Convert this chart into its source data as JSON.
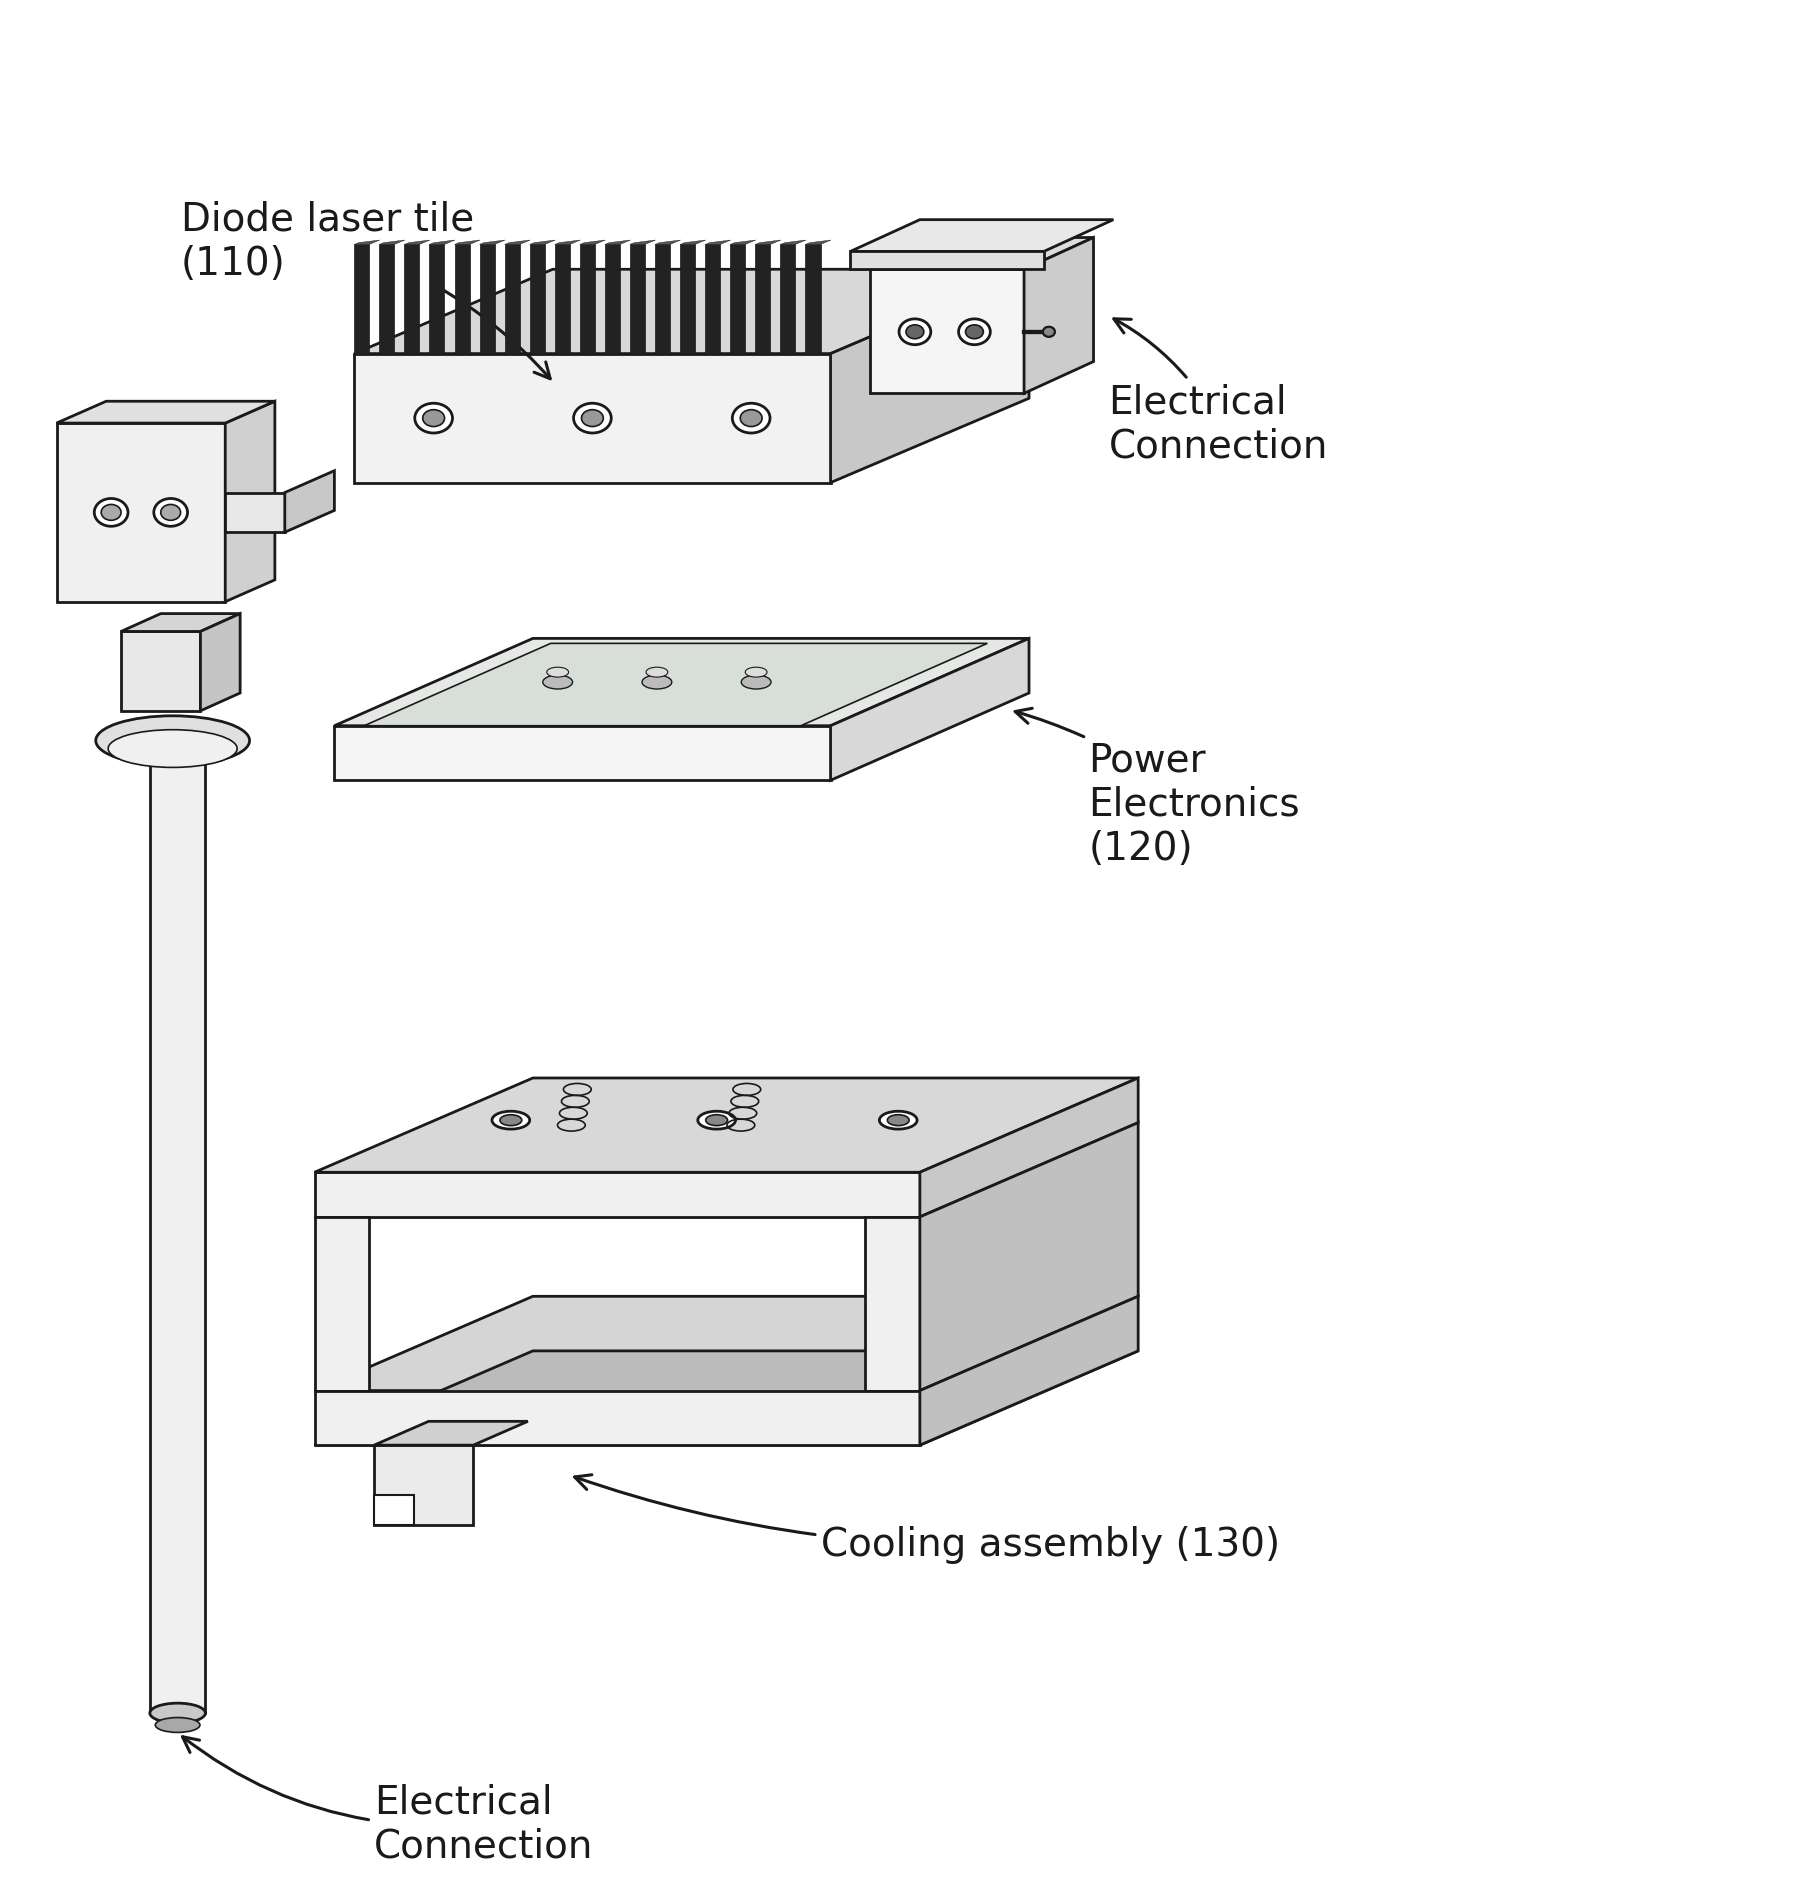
{
  "background_color": "#ffffff",
  "line_color": "#1a1a1a",
  "labels": {
    "diode_laser_tile": "Diode laser tile\n(110)",
    "electrical_connection_top": "Electrical\nConnection",
    "power_electronics": "Power\nElectronics\n(120)",
    "cooling_assembly": "Cooling assembly (130)",
    "electrical_connection_bottom": "Electrical\nConnection"
  },
  "figsize": [
    18.05,
    18.99
  ],
  "dpi": 100
}
